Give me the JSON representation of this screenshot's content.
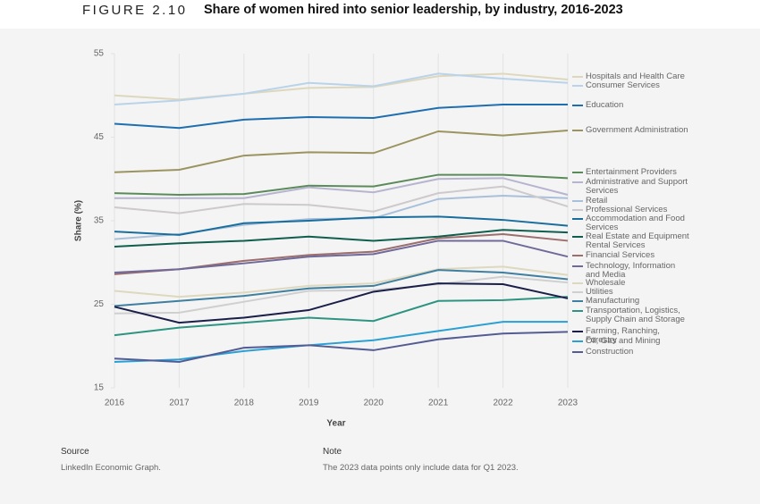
{
  "header": {
    "figure": "FIGURE 2.10",
    "title": "Share of women hired into senior leadership, by industry, 2016-2023"
  },
  "chart_data": {
    "type": "line",
    "x_label": "Year",
    "y_label": "Share (%)",
    "x": [
      2016,
      2017,
      2018,
      2019,
      2020,
      2021,
      2022,
      2023
    ],
    "xlim": [
      2016,
      2023
    ],
    "xticks": [
      2016,
      2017,
      2018,
      2019,
      2020,
      2021,
      2022,
      2023
    ],
    "ylim": [
      15,
      55
    ],
    "yticks": [
      15,
      25,
      35,
      45,
      55
    ],
    "grid": true,
    "series": [
      {
        "name": "Hospitals and Health Care",
        "color": "#ddd8bd",
        "values": [
          50.0,
          49.5,
          50.2,
          50.9,
          51.0,
          52.3,
          52.6,
          51.9
        ]
      },
      {
        "name": "Consumer Services",
        "color": "#b9d3ea",
        "values": [
          48.9,
          49.4,
          50.2,
          51.5,
          51.1,
          52.6,
          52.0,
          51.5
        ]
      },
      {
        "name": "Education",
        "color": "#1f6fb0",
        "values": [
          46.6,
          46.1,
          47.1,
          47.4,
          47.3,
          48.5,
          48.9,
          48.9
        ]
      },
      {
        "name": "Government Administration",
        "color": "#9c9460",
        "values": [
          40.8,
          41.1,
          42.8,
          43.2,
          43.1,
          45.7,
          45.2,
          45.8
        ]
      },
      {
        "name": "Entertainment Providers",
        "color": "#5b8b5b",
        "values": [
          38.3,
          38.1,
          38.2,
          39.2,
          39.1,
          40.5,
          40.5,
          40.1
        ]
      },
      {
        "name": "Administrative and Support Services",
        "color": "#b7b4d0",
        "values": [
          37.7,
          37.7,
          37.7,
          39.0,
          38.4,
          40.0,
          40.1,
          38.1
        ]
      },
      {
        "name": "Retail",
        "color": "#a9c0da",
        "values": [
          32.8,
          33.4,
          34.5,
          35.2,
          35.3,
          37.6,
          38.0,
          37.7
        ]
      },
      {
        "name": "Professional Services",
        "color": "#cdc9cc",
        "values": [
          36.6,
          35.9,
          37.0,
          36.9,
          36.1,
          38.3,
          39.1,
          36.7
        ]
      },
      {
        "name": "Accommodation and Food Services",
        "color": "#1a6e9e",
        "values": [
          33.7,
          33.3,
          34.7,
          35.0,
          35.4,
          35.5,
          35.1,
          34.4
        ]
      },
      {
        "name": "Real Estate and Equipment Rental Services",
        "color": "#0f5e4e",
        "values": [
          31.9,
          32.3,
          32.6,
          33.1,
          32.6,
          33.1,
          33.9,
          33.6
        ]
      },
      {
        "name": "Financial Services",
        "color": "#9c6e6e",
        "values": [
          28.6,
          29.2,
          30.2,
          30.9,
          31.3,
          32.9,
          33.4,
          32.6
        ]
      },
      {
        "name": "Technology, Information and Media",
        "color": "#6f6a9a",
        "values": [
          28.8,
          29.2,
          29.9,
          30.7,
          31.0,
          32.6,
          32.6,
          30.7
        ]
      },
      {
        "name": "Wholesale",
        "color": "#ddd8be",
        "values": [
          26.6,
          25.9,
          26.4,
          27.2,
          27.5,
          29.2,
          29.5,
          28.5
        ]
      },
      {
        "name": "Utilities",
        "color": "#cfcfcf",
        "values": [
          23.9,
          24.0,
          25.3,
          26.6,
          26.7,
          27.4,
          28.3,
          27.6
        ]
      },
      {
        "name": "Manufacturing",
        "color": "#3f7f9f",
        "values": [
          24.8,
          25.4,
          26.0,
          26.9,
          27.2,
          29.1,
          28.8,
          28.0
        ]
      },
      {
        "name": "Transportation, Logistics, Supply Chain and Storage",
        "color": "#2e9482",
        "values": [
          21.3,
          22.2,
          22.8,
          23.4,
          23.0,
          25.4,
          25.5,
          25.9
        ]
      },
      {
        "name": "Farming, Ranching, Forestry",
        "color": "#1a1f4a",
        "values": [
          24.7,
          22.8,
          23.4,
          24.3,
          26.5,
          27.5,
          27.4,
          25.7
        ]
      },
      {
        "name": "Oil, Gas and Mining",
        "color": "#2aa0d4",
        "values": [
          18.1,
          18.4,
          19.4,
          20.1,
          20.7,
          21.8,
          22.9,
          22.9
        ]
      },
      {
        "name": "Construction",
        "color": "#545c94",
        "values": [
          18.5,
          18.1,
          19.8,
          20.1,
          19.5,
          20.8,
          21.5,
          21.7
        ]
      }
    ]
  },
  "footer": {
    "source_heading": "Source",
    "source": "LinkedIn Economic Graph.",
    "note_heading": "Note",
    "note": "The 2023 data points only include data for Q1 2023."
  }
}
